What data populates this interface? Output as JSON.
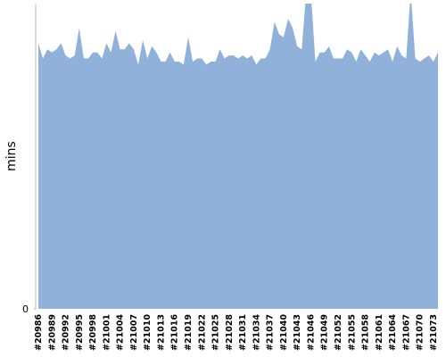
{
  "chart_data": {
    "type": "area",
    "y_label": "mins",
    "color": "#8fb1da",
    "categories": [
      "#20986",
      null,
      null,
      "#20989",
      null,
      null,
      "#20992",
      null,
      null,
      "#20995",
      null,
      null,
      "#20998",
      null,
      null,
      "#21001",
      null,
      null,
      "#21004",
      null,
      null,
      "#21007",
      null,
      null,
      "#21010",
      null,
      null,
      "#21013",
      null,
      null,
      "#21016",
      null,
      null,
      "#21019",
      null,
      null,
      "#21022",
      null,
      null,
      "#21025",
      null,
      null,
      "#21028",
      null,
      null,
      "#21031",
      null,
      null,
      "#21034",
      null,
      null,
      "#21037",
      null,
      null,
      "#21040",
      null,
      null,
      "#21043",
      null,
      null,
      "#21046",
      null,
      null,
      "#21049",
      null,
      null,
      "#21052",
      null,
      null,
      "#21055",
      null,
      null,
      "#21058",
      null,
      null,
      "#21061",
      null,
      null,
      "#21064",
      null,
      null,
      "#21067",
      null,
      null,
      "#21070",
      null,
      null,
      "#21073",
      null
    ],
    "values": [
      87,
      82,
      85,
      84,
      85,
      87,
      83,
      82,
      83,
      92,
      82,
      82,
      84,
      84,
      82,
      87,
      84,
      91,
      85,
      85,
      87,
      85,
      80,
      88,
      82,
      86,
      84,
      81,
      81,
      84,
      81,
      81,
      80,
      89,
      81,
      82,
      82,
      80,
      81,
      81,
      85,
      82,
      83,
      83,
      82,
      83,
      82,
      83,
      80,
      82,
      82,
      85,
      94,
      90,
      89,
      95,
      92,
      86,
      85,
      104,
      104,
      81,
      84,
      84,
      86,
      82,
      82,
      82,
      85,
      84,
      81,
      85,
      83,
      81,
      84,
      83,
      84,
      85,
      81,
      86,
      83,
      82,
      104,
      82,
      81,
      82,
      83,
      81,
      84
    ],
    "ylim": [
      0,
      100
    ],
    "yticks": [
      0
    ]
  }
}
